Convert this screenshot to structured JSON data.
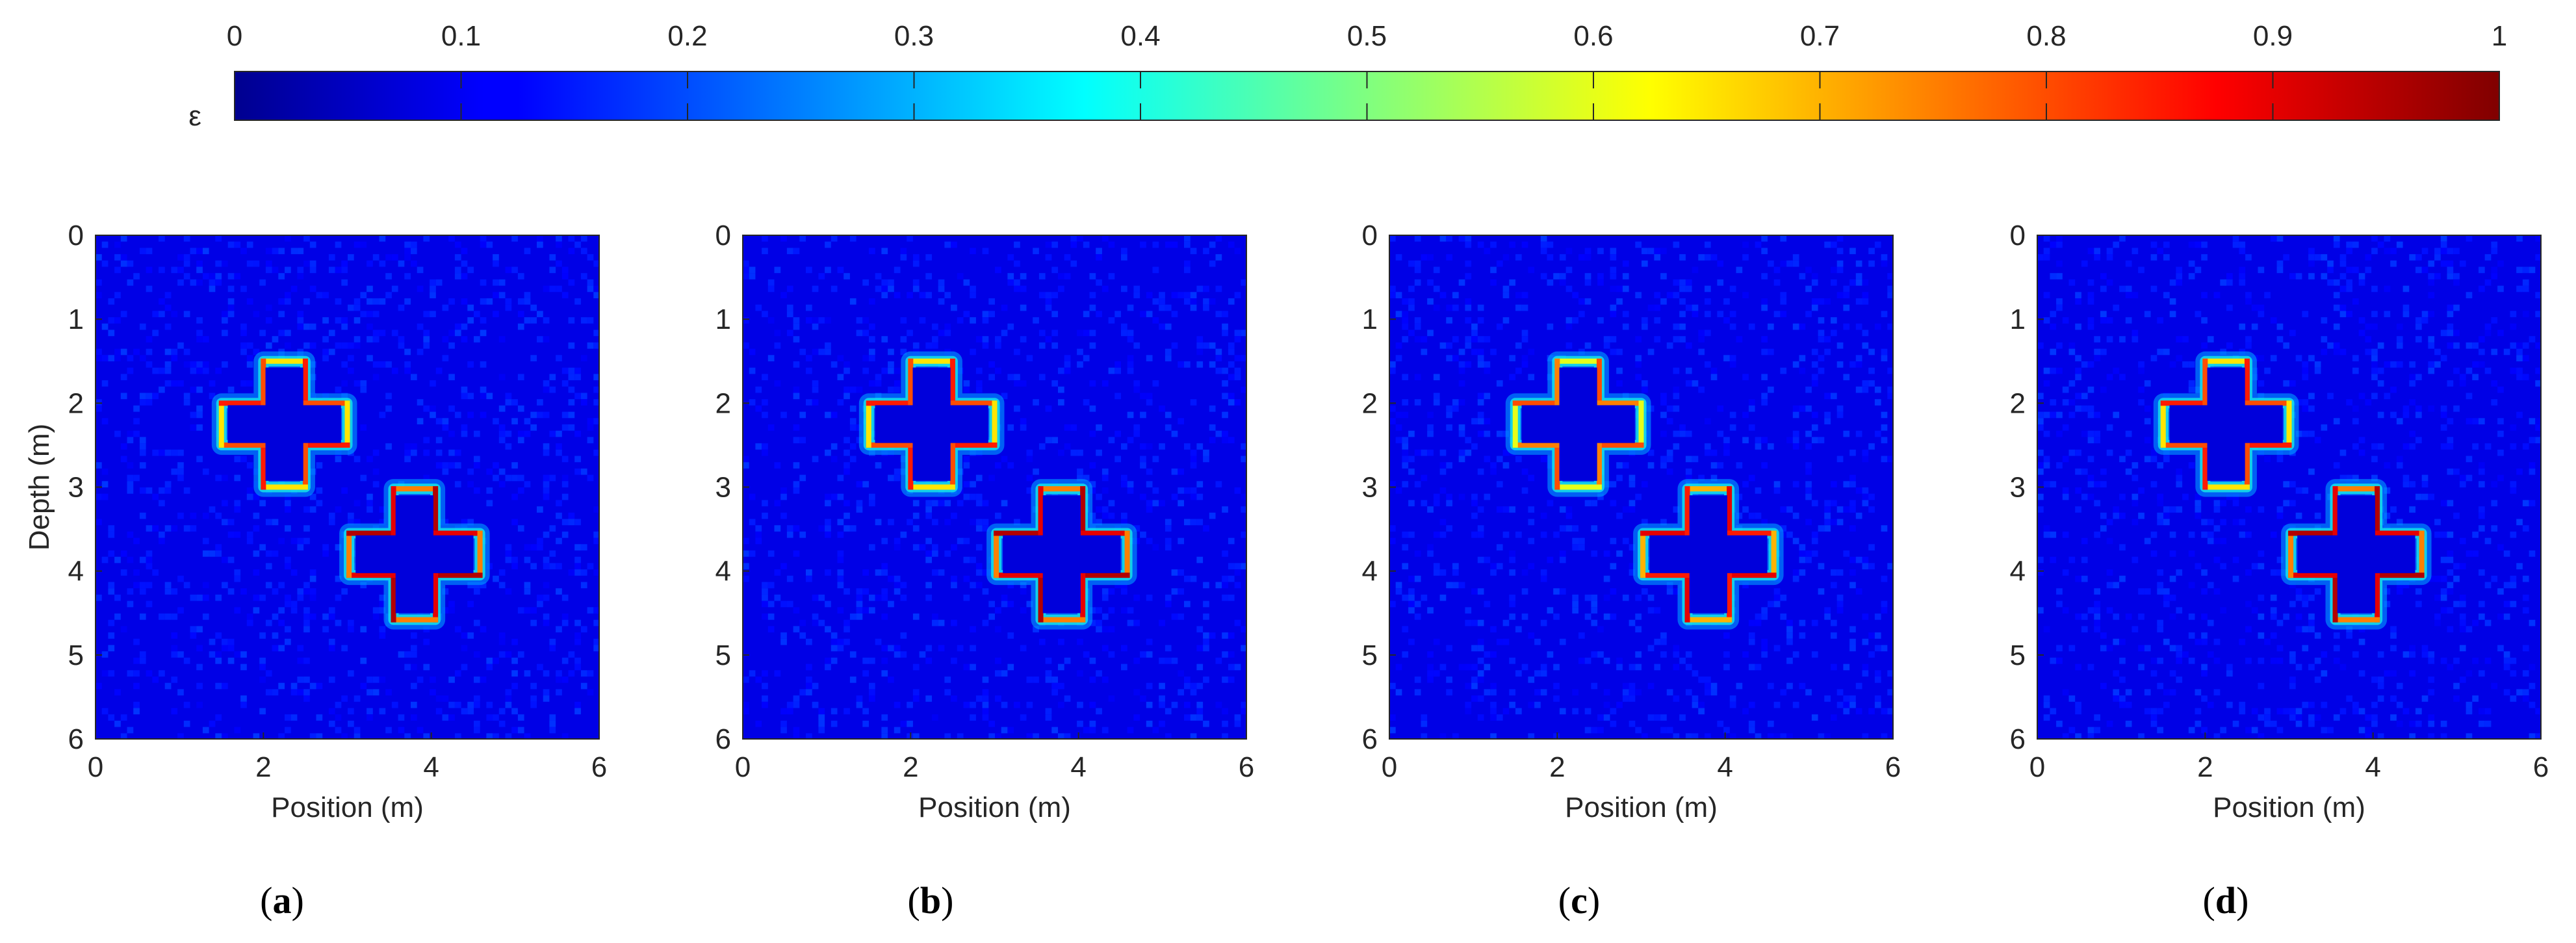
{
  "chart_data": {
    "type": "heatmap",
    "colorbar": {
      "label": "ε",
      "ticks": [
        "0",
        "0.1",
        "0.2",
        "0.3",
        "0.4",
        "0.5",
        "0.6",
        "0.7",
        "0.8",
        "0.9",
        "1"
      ],
      "range": [
        0,
        1
      ],
      "colormap": "jet"
    },
    "panels": [
      {
        "id": "a",
        "label_open": "(",
        "label_letter": "a",
        "label_close": ")",
        "xlabel": "Position (m)",
        "ylabel": "Depth (m)",
        "xticks": [
          "0",
          "2",
          "4",
          "6"
        ],
        "yticks": [
          "0",
          "1",
          "2",
          "3",
          "4",
          "5",
          "6"
        ],
        "xlim": [
          0,
          6
        ],
        "ylim": [
          0,
          6
        ],
        "objects": [
          {
            "shape": "cross",
            "cx": 2.25,
            "cy": 2.25,
            "half": 0.75,
            "arm": 0.25,
            "edge_value": 0.85
          },
          {
            "shape": "cross",
            "cx": 3.8,
            "cy": 3.8,
            "half": 0.78,
            "arm": 0.25,
            "edge_value": 0.95
          }
        ]
      },
      {
        "id": "b",
        "label_open": "(",
        "label_letter": "b",
        "label_close": ")",
        "xlabel": "Position (m)",
        "ylabel": "",
        "xticks": [
          "0",
          "2",
          "4",
          "6"
        ],
        "yticks": [
          "0",
          "1",
          "2",
          "3",
          "4",
          "5",
          "6"
        ],
        "xlim": [
          0,
          6
        ],
        "ylim": [
          0,
          6
        ],
        "objects": [
          {
            "shape": "cross",
            "cx": 2.25,
            "cy": 2.25,
            "half": 0.75,
            "arm": 0.25,
            "edge_value": 0.85
          },
          {
            "shape": "cross",
            "cx": 3.8,
            "cy": 3.8,
            "half": 0.78,
            "arm": 0.25,
            "edge_value": 0.95
          }
        ]
      },
      {
        "id": "c",
        "label_open": "(",
        "label_letter": "c",
        "label_close": ")",
        "xlabel": "Position (m)",
        "ylabel": "",
        "xticks": [
          "0",
          "2",
          "4",
          "6"
        ],
        "yticks": [
          "0",
          "1",
          "2",
          "3",
          "4",
          "5",
          "6"
        ],
        "xlim": [
          0,
          6
        ],
        "ylim": [
          0,
          6
        ],
        "objects": [
          {
            "shape": "cross",
            "cx": 2.25,
            "cy": 2.25,
            "half": 0.75,
            "arm": 0.25,
            "edge_value": 0.8
          },
          {
            "shape": "cross",
            "cx": 3.8,
            "cy": 3.8,
            "half": 0.78,
            "arm": 0.25,
            "edge_value": 0.9
          }
        ]
      },
      {
        "id": "d",
        "label_open": "(",
        "label_letter": "d",
        "label_close": ")",
        "xlabel": "Position (m)",
        "ylabel": "",
        "xticks": [
          "0",
          "2",
          "4",
          "6"
        ],
        "yticks": [
          "0",
          "1",
          "2",
          "3",
          "4",
          "5",
          "6"
        ],
        "xlim": [
          0,
          6
        ],
        "ylim": [
          0,
          6
        ],
        "objects": [
          {
            "shape": "cross",
            "cx": 2.25,
            "cy": 2.25,
            "half": 0.75,
            "arm": 0.25,
            "edge_value": 0.85
          },
          {
            "shape": "cross",
            "cx": 3.8,
            "cy": 3.8,
            "half": 0.78,
            "arm": 0.25,
            "edge_value": 0.95
          }
        ]
      }
    ]
  }
}
